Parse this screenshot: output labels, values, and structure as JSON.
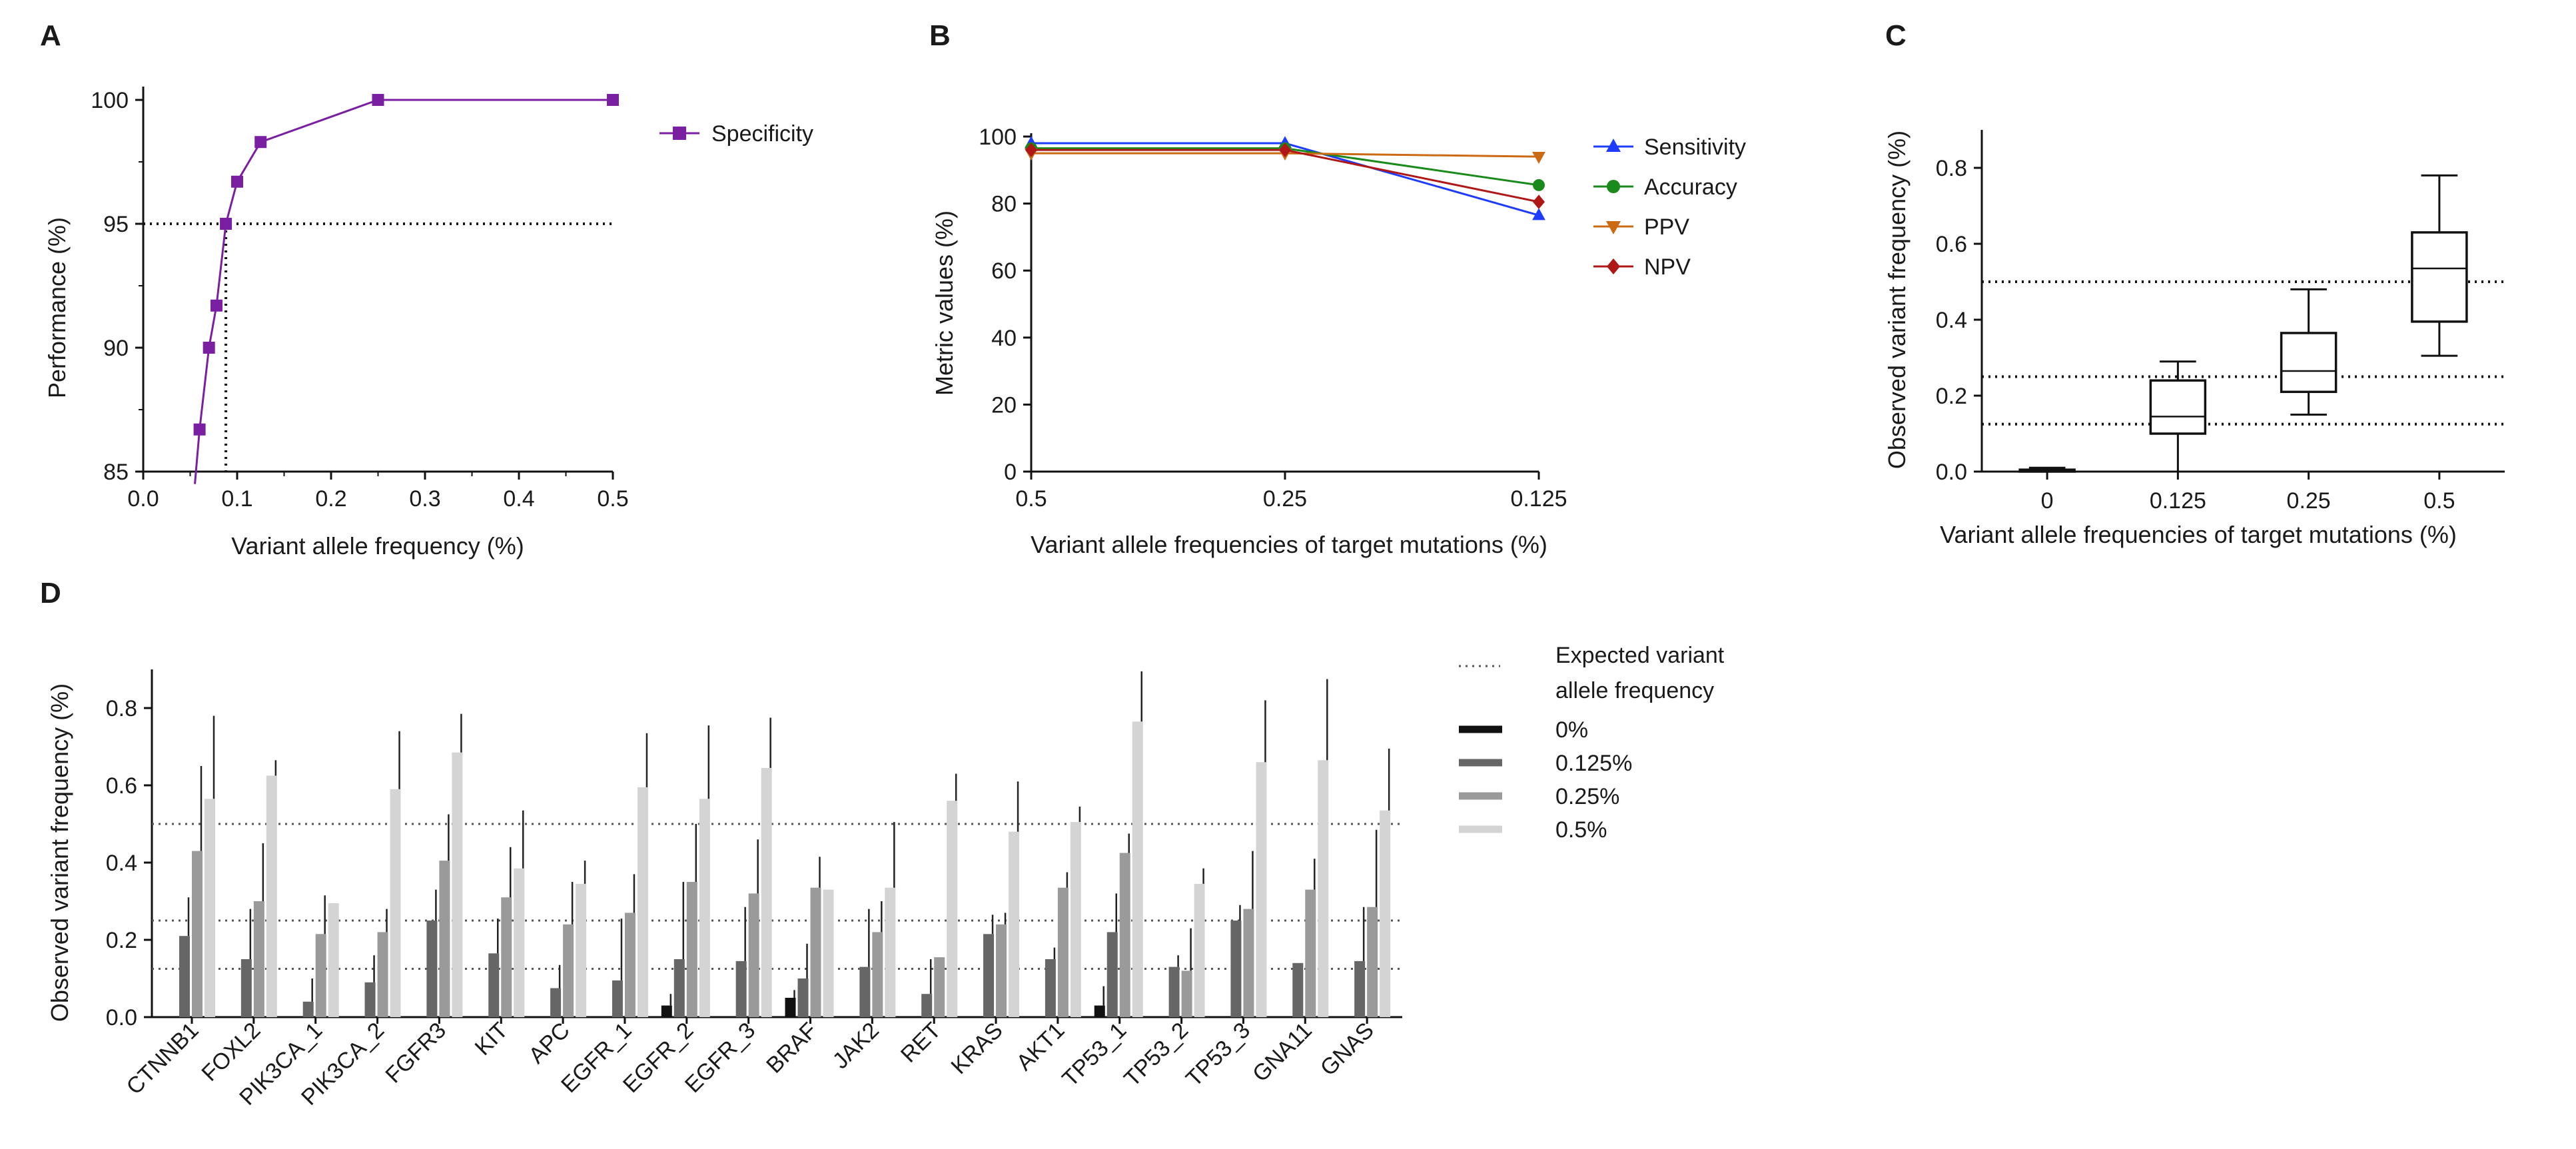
{
  "panels": {
    "a": "A",
    "b": "B",
    "c": "C",
    "d": "D"
  },
  "chart_data": [
    {
      "id": "A",
      "type": "line",
      "xlabel": "Variant allele frequency (%)",
      "ylabel": "Performance (%)",
      "xlim": [
        0,
        0.5
      ],
      "ylim": [
        85,
        100
      ],
      "xticks": [
        "0.0",
        "0.1",
        "0.2",
        "0.3",
        "0.4",
        "0.5"
      ],
      "yticks": [
        "85",
        "90",
        "95",
        "100"
      ],
      "series": [
        {
          "name": "Specificity",
          "color": "#7b1fa2",
          "x": [
            0.055,
            0.06,
            0.07,
            0.078,
            0.088,
            0.1,
            0.125,
            0.25,
            0.5
          ],
          "y": [
            84.5,
            86.7,
            90.0,
            91.7,
            95.0,
            96.7,
            98.3,
            100.0,
            100.0
          ]
        }
      ],
      "reference": {
        "y": 95,
        "x": 0.088,
        "style": "dotted"
      }
    },
    {
      "id": "B",
      "type": "line",
      "xlabel": "Variant allele frequencies of target mutations (%)",
      "ylabel": "Metric values (%)",
      "categories": [
        "0.5",
        "0.25",
        "0.125"
      ],
      "ylim": [
        0,
        100
      ],
      "yticks": [
        "0",
        "20",
        "40",
        "60",
        "80",
        "100"
      ],
      "series": [
        {
          "name": "Sensitivity",
          "color": "#1e3cff",
          "marker": "triangle-up",
          "values": [
            98,
            98,
            76.5
          ]
        },
        {
          "name": "Accuracy",
          "color": "#1a8a1a",
          "marker": "circle",
          "values": [
            96.5,
            96.5,
            85.5
          ]
        },
        {
          "name": "PPV",
          "color": "#cc6a14",
          "marker": "triangle-down",
          "values": [
            95,
            95,
            94
          ]
        },
        {
          "name": "NPV",
          "color": "#b01818",
          "marker": "diamond",
          "values": [
            96,
            96,
            80.5
          ]
        }
      ]
    },
    {
      "id": "C",
      "type": "box",
      "xlabel": "Variant allele frequencies of target mutations (%)",
      "ylabel": "Observed variant frequency (%)",
      "categories": [
        "0",
        "0.125",
        "0.25",
        "0.5"
      ],
      "ylim": [
        0,
        0.9
      ],
      "yticks": [
        "0.0",
        "0.2",
        "0.4",
        "0.6",
        "0.8"
      ],
      "boxes": [
        {
          "min": 0,
          "q1": 0,
          "median": 0,
          "q3": 0.005,
          "max": 0.01
        },
        {
          "min": 0.0,
          "q1": 0.1,
          "median": 0.145,
          "q3": 0.24,
          "max": 0.29
        },
        {
          "min": 0.15,
          "q1": 0.21,
          "median": 0.265,
          "q3": 0.365,
          "max": 0.48
        },
        {
          "min": 0.305,
          "q1": 0.395,
          "median": 0.535,
          "q3": 0.63,
          "max": 0.78
        }
      ],
      "reference_lines": [
        0.5,
        0.25,
        0.125
      ]
    },
    {
      "id": "D",
      "type": "bar",
      "ylabel": "Observed variant frequency (%)",
      "ylim": [
        0,
        0.9
      ],
      "yticks": [
        "0.0",
        "0.2",
        "0.4",
        "0.6",
        "0.8"
      ],
      "reference_lines": [
        0.5,
        0.25,
        0.125
      ],
      "legend_title": "Expected variant allele frequency",
      "categories": [
        "CTNNB1",
        "FOXL2",
        "PIK3CA_1",
        "PIK3CA_2",
        "FGFR3",
        "KIT",
        "APC",
        "EGFR_1",
        "EGFR_2",
        "EGFR_3",
        "BRAF",
        "JAK2",
        "RET",
        "KRAS",
        "AKT1",
        "TP53_1",
        "TP53_2",
        "TP53_3",
        "GNA11",
        "GNAS"
      ],
      "series": [
        {
          "name": "0%",
          "color": "#111111",
          "values": [
            0,
            0,
            0,
            0,
            0,
            0,
            0,
            0,
            0.03,
            0,
            0.05,
            0,
            0,
            0,
            0,
            0.03,
            0,
            0,
            0,
            0
          ],
          "errors": [
            0,
            0,
            0,
            0,
            0,
            0,
            0,
            0,
            0.03,
            0,
            0.02,
            0,
            0,
            0,
            0,
            0.05,
            0,
            0,
            0,
            0
          ]
        },
        {
          "name": "0.125%",
          "color": "#666666",
          "values": [
            0.21,
            0.15,
            0.04,
            0.09,
            0.25,
            0.165,
            0.075,
            0.095,
            0.15,
            0.145,
            0.1,
            0.13,
            0.06,
            0.215,
            0.15,
            0.22,
            0.13,
            0.25,
            0.14,
            0.145
          ],
          "errors": [
            0.1,
            0.13,
            0.06,
            0.07,
            0.08,
            0.09,
            0.06,
            0.16,
            0.2,
            0.14,
            0.09,
            0.15,
            0.09,
            0.05,
            0.03,
            0.1,
            0.03,
            0.04,
            0.0,
            0.14
          ]
        },
        {
          "name": "0.25%",
          "color": "#9a9a9a",
          "values": [
            0.43,
            0.3,
            0.215,
            0.22,
            0.405,
            0.31,
            0.24,
            0.27,
            0.35,
            0.32,
            0.335,
            0.22,
            0.155,
            0.24,
            0.335,
            0.425,
            0.12,
            0.28,
            0.33,
            0.285
          ],
          "errors": [
            0.22,
            0.15,
            0.1,
            0.06,
            0.12,
            0.13,
            0.11,
            0.1,
            0.15,
            0.14,
            0.08,
            0.08,
            0.0,
            0.03,
            0.04,
            0.05,
            0.11,
            0.15,
            0.08,
            0.2
          ]
        },
        {
          "name": "0.5%",
          "color": "#d4d4d4",
          "values": [
            0.565,
            0.625,
            0.295,
            0.59,
            0.685,
            0.385,
            0.345,
            0.595,
            0.565,
            0.645,
            0.33,
            0.335,
            0.56,
            0.48,
            0.505,
            0.765,
            0.345,
            0.66,
            0.665,
            0.535
          ],
          "errors": [
            0.215,
            0.04,
            0.0,
            0.15,
            0.1,
            0.15,
            0.06,
            0.14,
            0.19,
            0.13,
            0.0,
            0.17,
            0.07,
            0.13,
            0.04,
            0.13,
            0.04,
            0.16,
            0.21,
            0.16
          ]
        }
      ]
    }
  ]
}
